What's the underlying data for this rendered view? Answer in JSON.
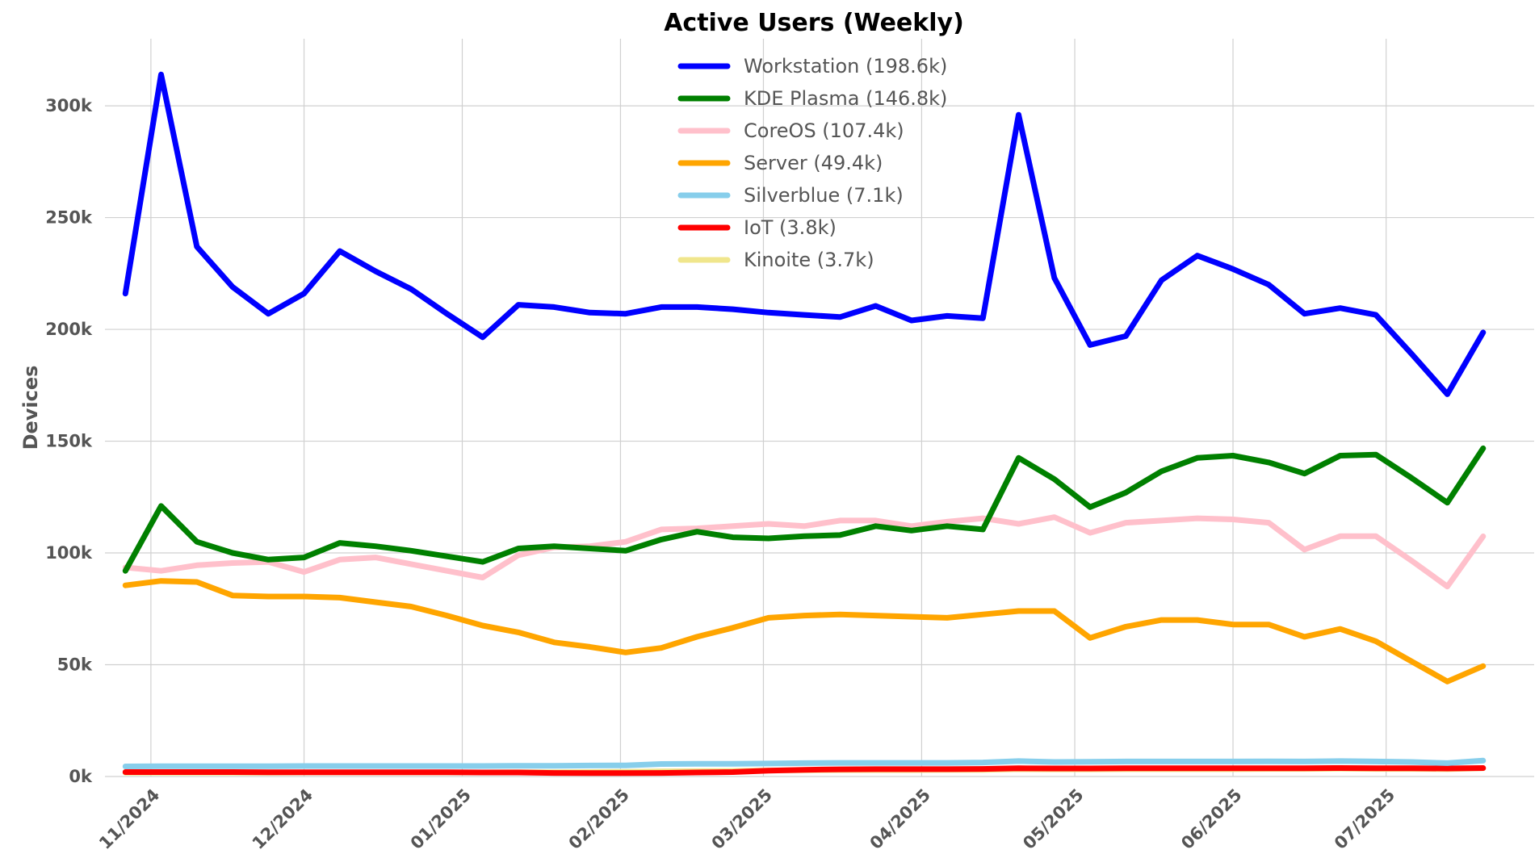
{
  "chart_data": {
    "type": "line",
    "title": "Active Users (Weekly)",
    "xlabel": "",
    "ylabel": "Devices",
    "ylim": [
      0,
      330000
    ],
    "y_ticks": [
      {
        "value": 0,
        "label": "0k"
      },
      {
        "value": 50000,
        "label": "50k"
      },
      {
        "value": 100000,
        "label": "100k"
      },
      {
        "value": 150000,
        "label": "150k"
      },
      {
        "value": 200000,
        "label": "200k"
      },
      {
        "value": 250000,
        "label": "250k"
      },
      {
        "value": 300000,
        "label": "300k"
      }
    ],
    "x_ticks": [
      {
        "date": "2024-11-01",
        "label": "11/2024"
      },
      {
        "date": "2024-12-01",
        "label": "12/2024"
      },
      {
        "date": "2025-01-01",
        "label": "01/2025"
      },
      {
        "date": "2025-02-01",
        "label": "02/2025"
      },
      {
        "date": "2025-03-01",
        "label": "03/2025"
      },
      {
        "date": "2025-04-01",
        "label": "04/2025"
      },
      {
        "date": "2025-05-01",
        "label": "05/2025"
      },
      {
        "date": "2025-06-01",
        "label": "06/2025"
      },
      {
        "date": "2025-07-01",
        "label": "07/2025"
      }
    ],
    "xlim": [
      "2024-10-23",
      "2025-07-30"
    ],
    "grid": true,
    "legend_position": "top-center",
    "x": [
      "2024-10-27",
      "2024-11-03",
      "2024-11-10",
      "2024-11-17",
      "2024-11-24",
      "2024-12-01",
      "2024-12-08",
      "2024-12-15",
      "2024-12-22",
      "2024-12-29",
      "2025-01-05",
      "2025-01-12",
      "2025-01-19",
      "2025-01-26",
      "2025-02-02",
      "2025-02-09",
      "2025-02-16",
      "2025-02-23",
      "2025-03-02",
      "2025-03-09",
      "2025-03-16",
      "2025-03-23",
      "2025-03-30",
      "2025-04-06",
      "2025-04-13",
      "2025-04-20",
      "2025-04-27",
      "2025-05-04",
      "2025-05-11",
      "2025-05-18",
      "2025-05-25",
      "2025-06-01",
      "2025-06-08",
      "2025-06-15",
      "2025-06-22",
      "2025-06-29",
      "2025-07-06",
      "2025-07-13",
      "2025-07-20",
      "2025-07-27"
    ],
    "series": [
      {
        "name": "Workstation (198.6k)",
        "color": "#0000ff",
        "values": [
          216000,
          314000,
          237000,
          219000,
          207000,
          216000,
          235000,
          226000,
          218000,
          207000,
          196500,
          211000,
          210000,
          207500,
          207000,
          210000,
          210000,
          209000,
          207500,
          206500,
          205500,
          210500,
          204000,
          206000,
          205000,
          296000,
          223000,
          193000,
          197000,
          222000,
          233000,
          227000,
          220000,
          207000,
          209500,
          206500,
          189000,
          171000,
          198600,
          null
        ]
      },
      {
        "name": "KDE Plasma (146.8k)",
        "color": "#008000",
        "values": [
          92000,
          121000,
          105000,
          100000,
          97000,
          98000,
          104500,
          103000,
          101000,
          98500,
          96000,
          102000,
          103000,
          102000,
          101000,
          106000,
          109500,
          107000,
          106500,
          107500,
          108000,
          112000,
          110000,
          112000,
          110500,
          142500,
          133000,
          120500,
          127000,
          136500,
          142500,
          143500,
          140500,
          135500,
          143500,
          144000,
          133500,
          122500,
          146800,
          null
        ]
      },
      {
        "name": "CoreOS (107.4k)",
        "color": "#ffc0cb",
        "values": [
          93500,
          92000,
          94500,
          95500,
          96000,
          91500,
          97000,
          98000,
          95000,
          92000,
          89000,
          99000,
          102500,
          103000,
          105000,
          110500,
          111000,
          112000,
          113000,
          112000,
          114500,
          114500,
          112000,
          114000,
          115500,
          113000,
          116000,
          109000,
          113500,
          114500,
          115500,
          115000,
          113500,
          101500,
          107500,
          107500,
          96500,
          85000,
          107400,
          null
        ]
      },
      {
        "name": "Server (49.4k)",
        "color": "#ffa500",
        "values": [
          85500,
          87500,
          87000,
          81000,
          80500,
          80500,
          80000,
          78000,
          76000,
          72000,
          67500,
          64500,
          60000,
          58000,
          55500,
          57500,
          62500,
          66500,
          71000,
          72000,
          72500,
          72000,
          71500,
          71000,
          72500,
          74000,
          74000,
          62000,
          67000,
          70000,
          70000,
          68000,
          68000,
          62500,
          66000,
          60500,
          51500,
          42500,
          49400,
          null
        ]
      },
      {
        "name": "Silverblue (7.1k)",
        "color": "#87ceeb",
        "values": [
          4500,
          4600,
          4600,
          4600,
          4600,
          4700,
          4700,
          4700,
          4700,
          4700,
          4700,
          4800,
          4800,
          4900,
          5000,
          5600,
          5700,
          5700,
          5800,
          6000,
          6100,
          6100,
          6100,
          6100,
          6300,
          6900,
          6500,
          6600,
          6700,
          6700,
          6700,
          6700,
          6800,
          6700,
          6900,
          6700,
          6500,
          6000,
          7100,
          null
        ]
      },
      {
        "name": "IoT (3.8k)",
        "color": "#ff0000",
        "values": [
          2000,
          2000,
          2000,
          2000,
          1900,
          1900,
          1900,
          1900,
          1900,
          1900,
          1800,
          1800,
          1600,
          1500,
          1500,
          1600,
          1800,
          2000,
          2600,
          3000,
          3200,
          3300,
          3300,
          3300,
          3400,
          3700,
          3600,
          3600,
          3700,
          3700,
          3700,
          3700,
          3700,
          3700,
          3800,
          3700,
          3700,
          3600,
          3800,
          null
        ]
      },
      {
        "name": "Kinoite (3.7k)",
        "color": "#f0e68c",
        "values": [
          1700,
          1700,
          1700,
          1700,
          1700,
          1800,
          1800,
          1800,
          1800,
          1800,
          1800,
          1900,
          1900,
          2000,
          2100,
          2300,
          2400,
          2500,
          2700,
          2800,
          2900,
          2900,
          2900,
          3000,
          3000,
          3300,
          3200,
          3200,
          3300,
          3300,
          3300,
          3300,
          3400,
          3400,
          3500,
          3400,
          3400,
          3300,
          3700,
          null
        ]
      }
    ]
  }
}
